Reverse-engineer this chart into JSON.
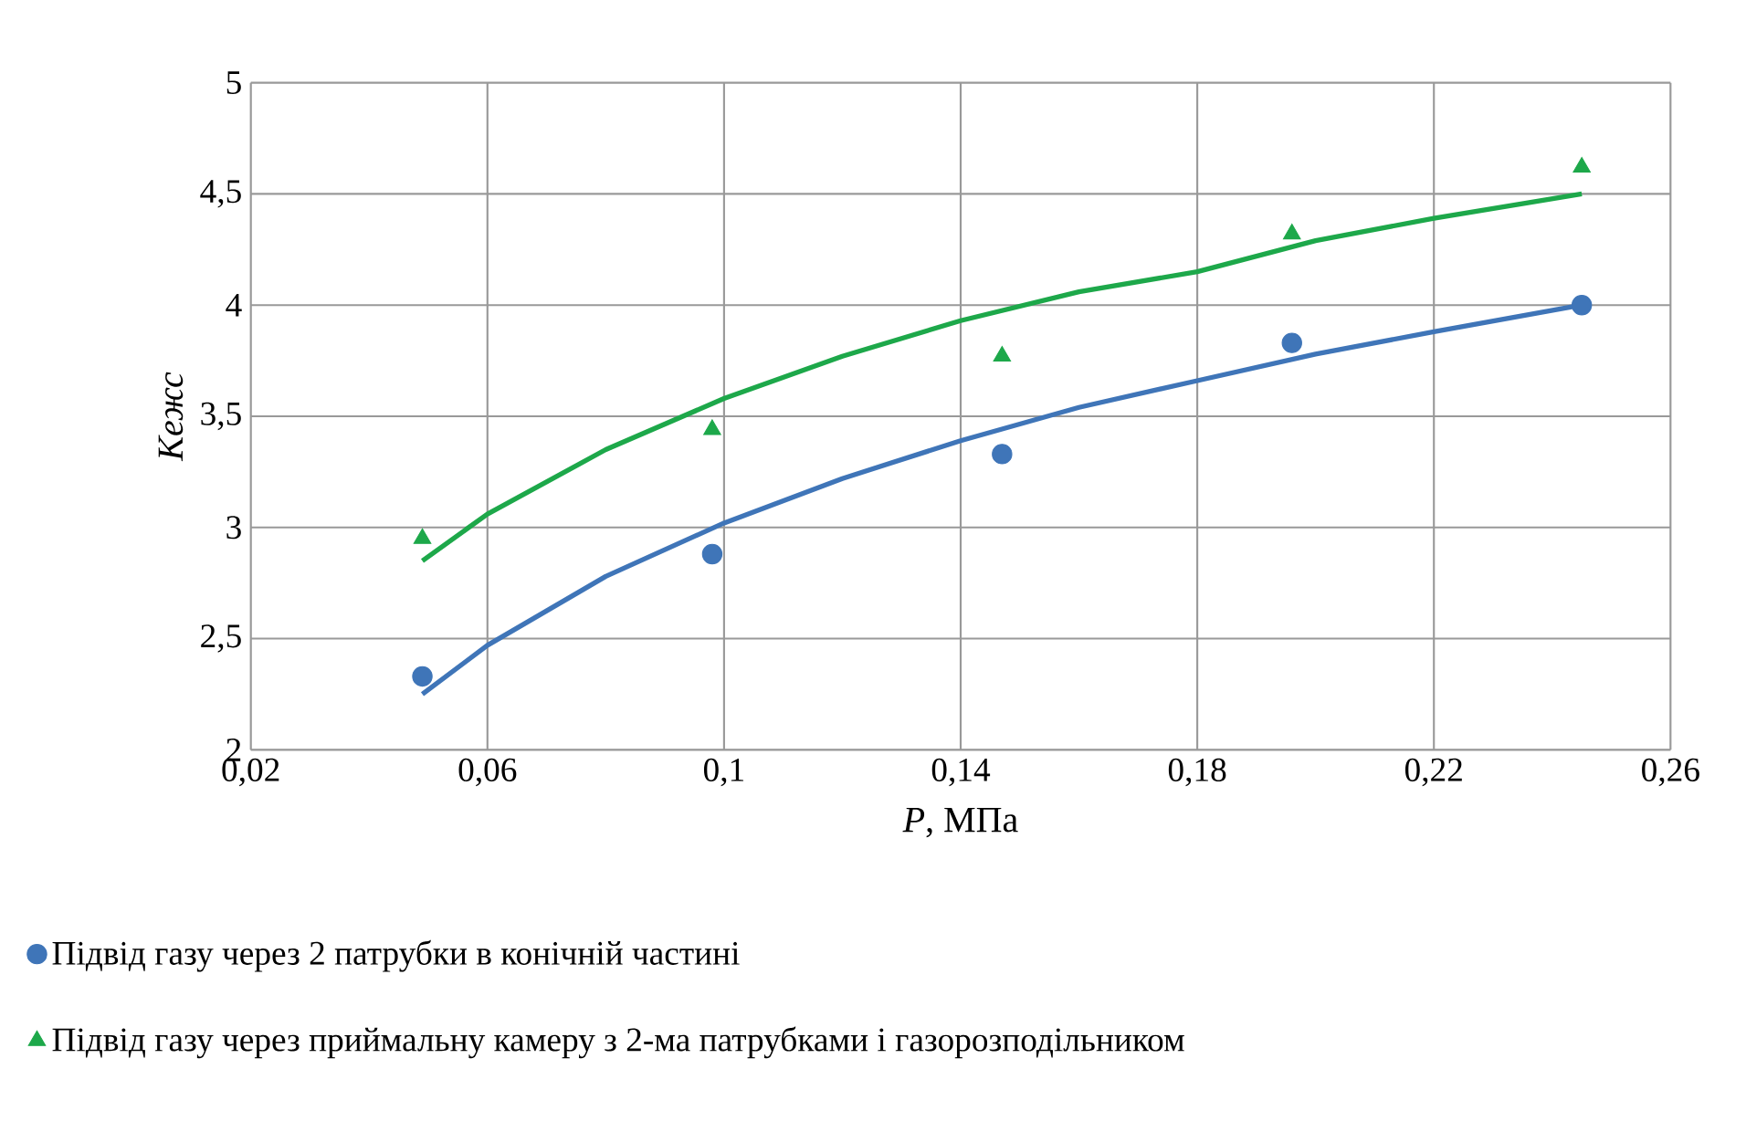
{
  "chart_data": {
    "type": "scatter",
    "xlabel": "*P*, МПа",
    "ylabel": "Kежс",
    "xlim": [
      0.02,
      0.26
    ],
    "ylim": [
      2,
      5
    ],
    "xticks": [
      {
        "value": 0.02,
        "label": "0,02"
      },
      {
        "value": 0.06,
        "label": "0,06"
      },
      {
        "value": 0.1,
        "label": "0,1"
      },
      {
        "value": 0.14,
        "label": "0,14"
      },
      {
        "value": 0.18,
        "label": "0,18"
      },
      {
        "value": 0.22,
        "label": "0,22"
      },
      {
        "value": 0.26,
        "label": "0,26"
      }
    ],
    "yticks": [
      2,
      {
        "value": 2.5,
        "label": "2,5"
      },
      3,
      {
        "value": 3.5,
        "label": "3,5"
      },
      4,
      {
        "value": 4.5,
        "label": "4,5"
      },
      5
    ],
    "grid": true,
    "legend": "bottom",
    "series": [
      {
        "name": "Підвід газу через 2 патрубки в конічній частині",
        "marker": "circle",
        "color": "#3f75b8",
        "x": [
          0.049,
          0.098,
          0.147,
          0.196,
          0.245
        ],
        "values": [
          2.33,
          2.88,
          3.33,
          3.83,
          4.0
        ]
      },
      {
        "name": "Підвід газу через приймальну камеру з 2-ма патрубками і газорозподільником",
        "marker": "triangle",
        "color": "#1da84a",
        "x": [
          0.049,
          0.098,
          0.147,
          0.196,
          0.245
        ],
        "values": [
          2.95,
          3.44,
          3.77,
          4.32,
          4.62
        ]
      },
      {
        "type": "line",
        "marker": "none",
        "color": "#3f75b8",
        "x": [
          0.049,
          0.06,
          0.08,
          0.1,
          0.12,
          0.14,
          0.16,
          0.18,
          0.2,
          0.22,
          0.245
        ],
        "values": [
          2.25,
          2.47,
          2.78,
          3.02,
          3.22,
          3.39,
          3.54,
          3.66,
          3.78,
          3.88,
          4.0
        ]
      },
      {
        "type": "line",
        "marker": "none",
        "color": "#1da84a",
        "x": [
          0.049,
          0.06,
          0.08,
          0.1,
          0.12,
          0.14,
          0.16,
          0.18,
          0.2,
          0.22,
          0.245
        ],
        "values": [
          2.85,
          3.06,
          3.35,
          3.58,
          3.77,
          3.93,
          4.06,
          4.15,
          4.29,
          4.39,
          4.5
        ]
      }
    ]
  }
}
